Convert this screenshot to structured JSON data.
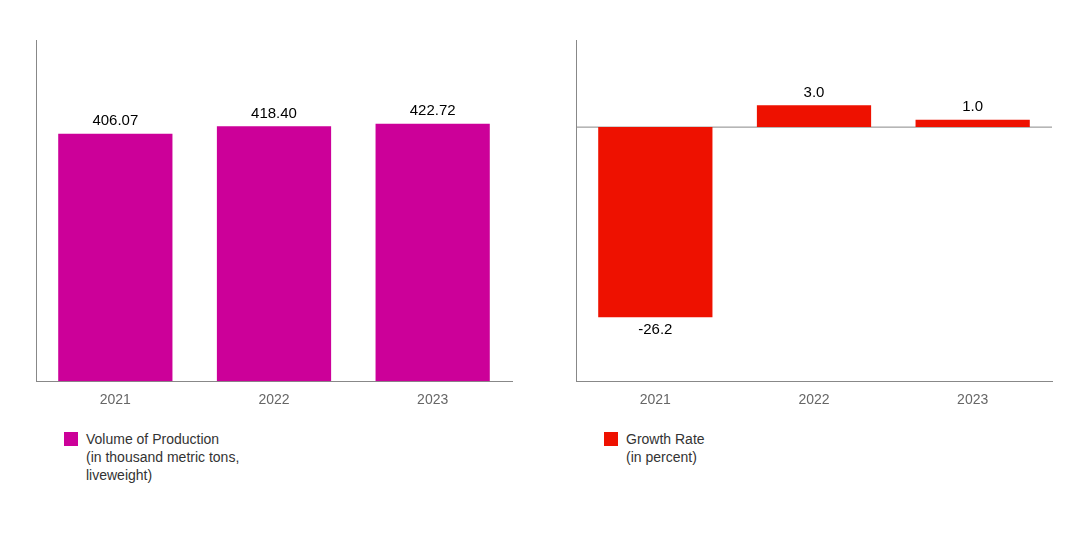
{
  "chart_data": [
    {
      "type": "bar",
      "categories": [
        "2021",
        "2022",
        "2023"
      ],
      "series": [
        {
          "name": "Volume of Production\n(in thousand metric tons,\nliveweight)",
          "color": "#CC0099",
          "values": [
            406.07,
            418.4,
            422.72
          ],
          "value_labels": [
            "406.07",
            "418.40",
            "422.72"
          ]
        }
      ],
      "ylim": [
        0,
        560
      ],
      "tick_labels": "x",
      "grid": false,
      "legend": "bottom",
      "data_labels": true
    },
    {
      "type": "bar",
      "categories": [
        "2021",
        "2022",
        "2023"
      ],
      "series": [
        {
          "name": "Growth Rate\n(in percent)",
          "color": "#EE1100",
          "values": [
            -26.2,
            3.0,
            1.0
          ],
          "value_labels": [
            "-26.2",
            "3.0",
            "1.0"
          ]
        }
      ],
      "ylim": [
        -35,
        12
      ],
      "tick_labels": "x",
      "grid": false,
      "legend": "bottom",
      "data_labels": true
    }
  ]
}
